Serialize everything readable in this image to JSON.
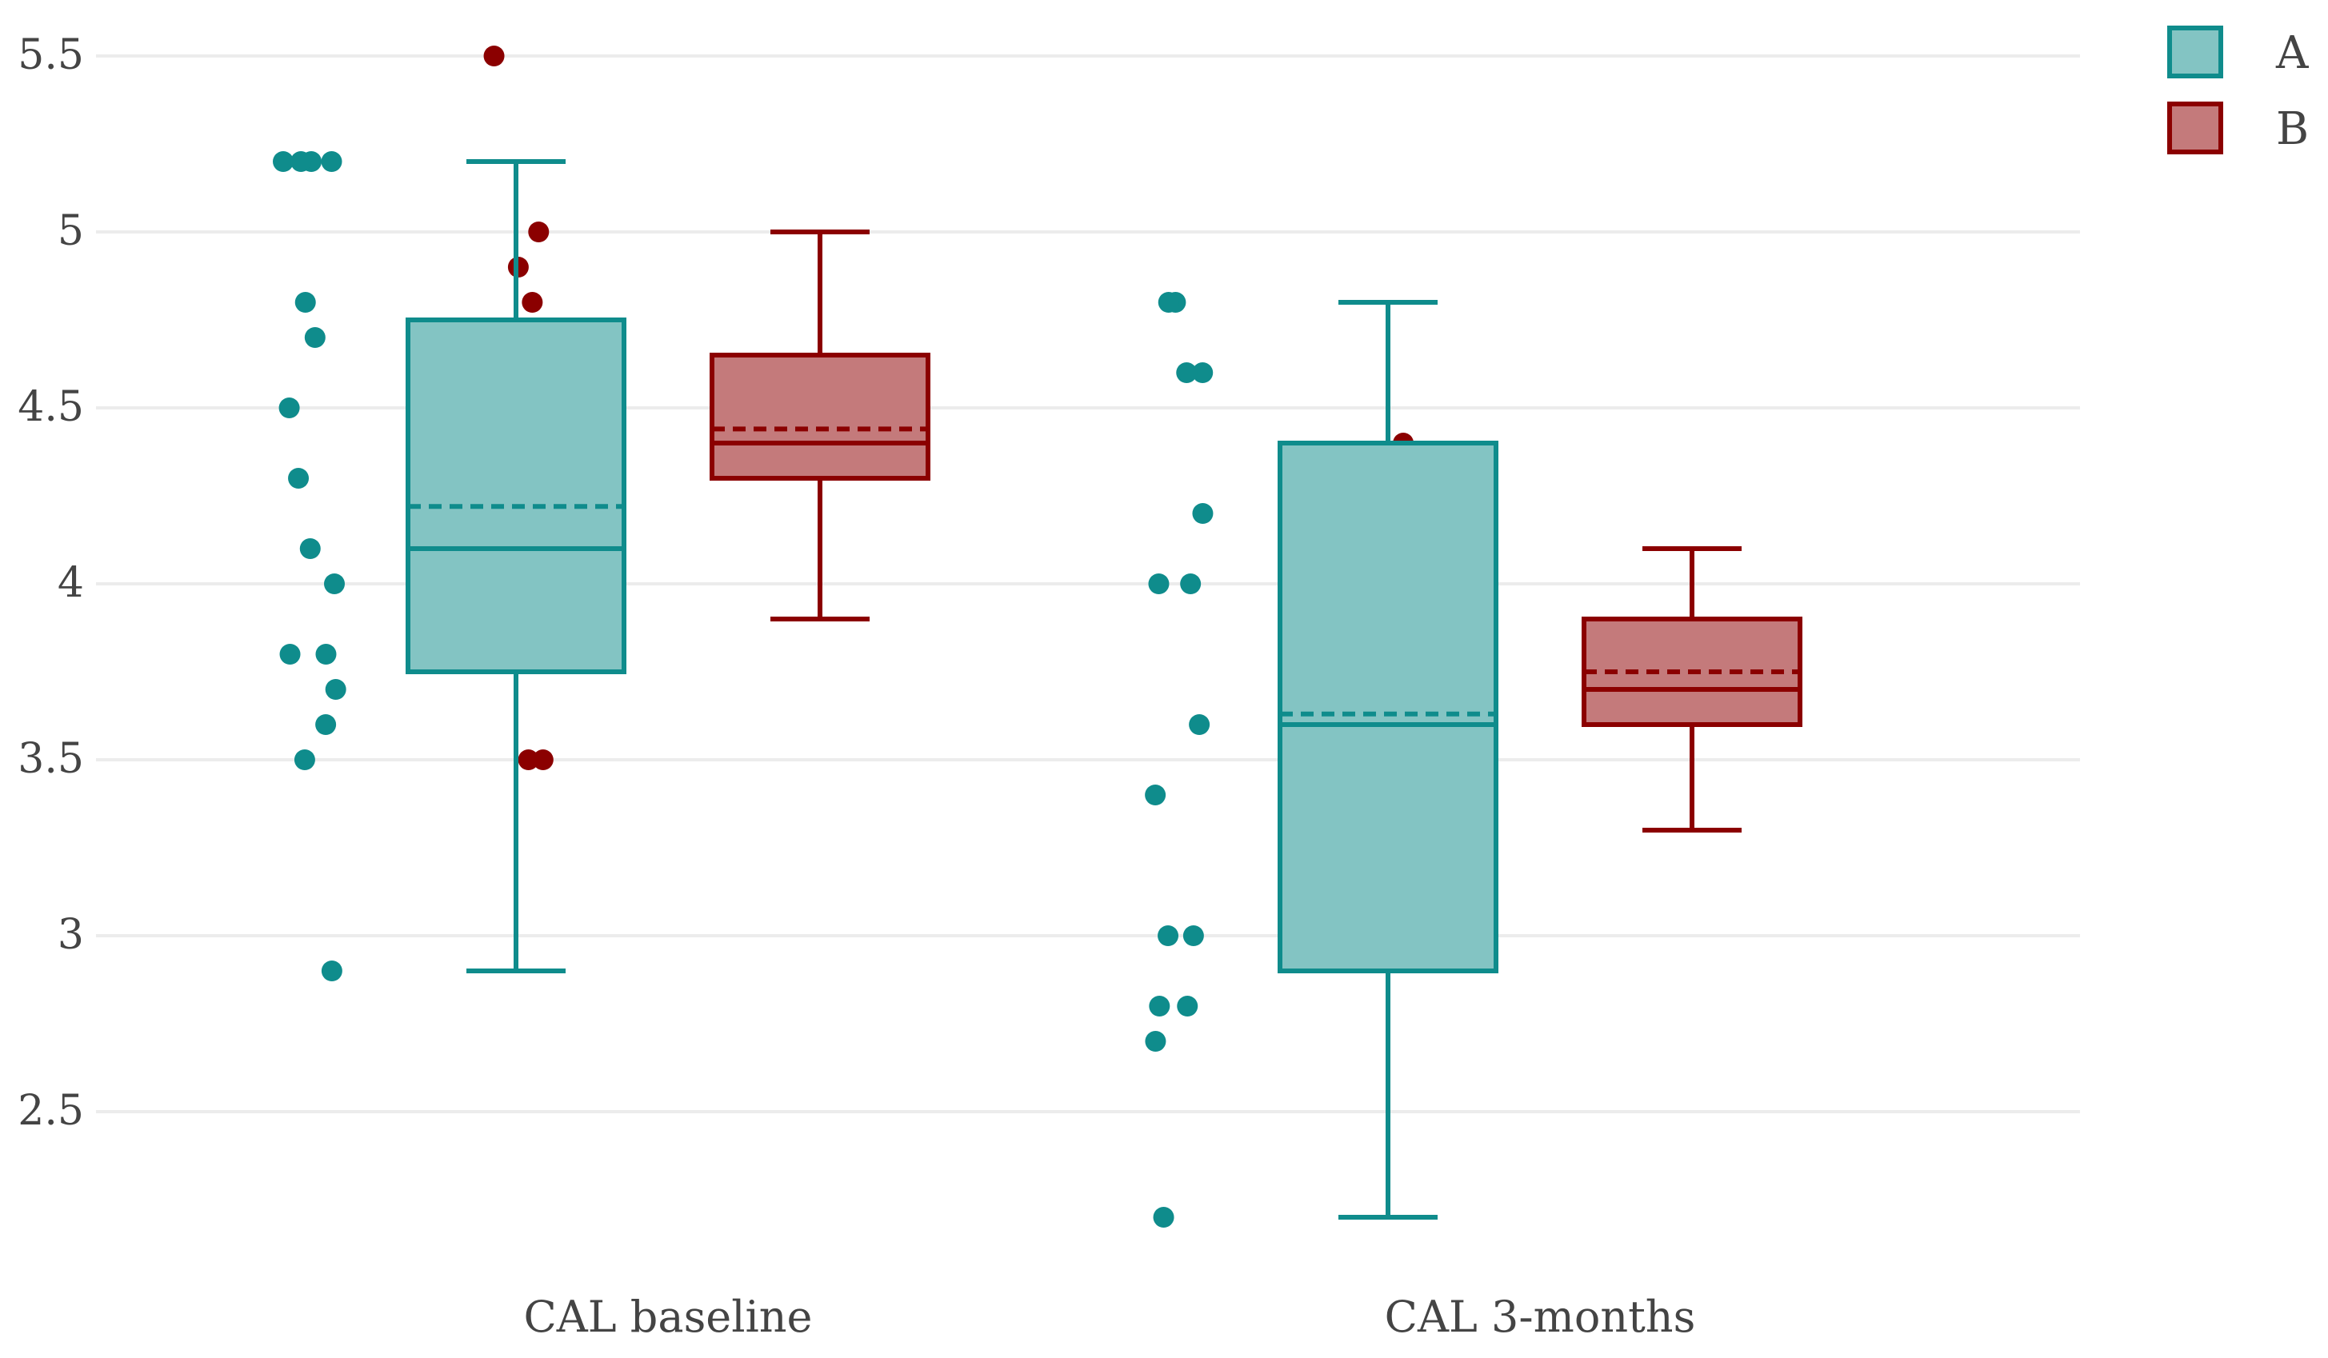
{
  "chart_data": {
    "type": "box",
    "title": "",
    "xlabel": "",
    "ylabel": "",
    "ylim": [
      2.15,
      5.6
    ],
    "grid": true,
    "legend_position": "top-right",
    "y_ticks": [
      {
        "value": 2.5,
        "label": "2.5"
      },
      {
        "value": 3,
        "label": "3"
      },
      {
        "value": 3.5,
        "label": "3.5"
      },
      {
        "value": 4,
        "label": "4"
      },
      {
        "value": 4.5,
        "label": "4.5"
      },
      {
        "value": 5,
        "label": "5"
      },
      {
        "value": 5.5,
        "label": "5.5"
      }
    ],
    "categories": [
      "CAL baseline",
      "CAL 3-months"
    ],
    "series": [
      {
        "name": "A",
        "color": "#0f8c8c",
        "fill": "#83c4c3",
        "boxes": [
          {
            "min": 2.9,
            "q1": 3.75,
            "median": 4.1,
            "mean": 4.22,
            "q3": 4.75,
            "max": 5.2
          },
          {
            "min": 2.2,
            "q1": 2.9,
            "median": 3.6,
            "mean": 3.63,
            "q3": 4.4,
            "max": 4.8
          }
        ],
        "points": [
          [
            5.2,
            5.2,
            5.2,
            5.2,
            4.8,
            4.7,
            4.5,
            4.3,
            4.1,
            4.0,
            3.8,
            3.8,
            3.7,
            3.6,
            3.5,
            2.9
          ],
          [
            4.8,
            4.8,
            4.6,
            4.6,
            4.2,
            4.0,
            4.0,
            3.6,
            3.4,
            3.0,
            3.0,
            2.8,
            2.8,
            2.7,
            2.2
          ]
        ]
      },
      {
        "name": "B",
        "color": "#8b0000",
        "fill": "#c47a7b",
        "boxes": [
          {
            "min": 3.9,
            "q1": 4.3,
            "median": 4.4,
            "mean": 4.44,
            "q3": 4.65,
            "max": 5.0
          },
          {
            "min": 3.3,
            "q1": 3.6,
            "median": 3.7,
            "mean": 3.75,
            "q3": 3.9,
            "max": 4.1
          }
        ],
        "points": [
          [
            5.5,
            5.0,
            4.9,
            4.8,
            4.7,
            4.6,
            4.5,
            4.5,
            4.5,
            4.4,
            4.4,
            4.4,
            4.4,
            4.3,
            4.3,
            4.1,
            3.9,
            3.5,
            3.5
          ],
          [
            4.4,
            4.1,
            4.0,
            4.0,
            3.9,
            3.9,
            3.9,
            3.8,
            3.7,
            3.7,
            3.7,
            3.6,
            3.6,
            3.6,
            3.5,
            3.4,
            3.3,
            3.3,
            3.3
          ]
        ]
      }
    ]
  }
}
